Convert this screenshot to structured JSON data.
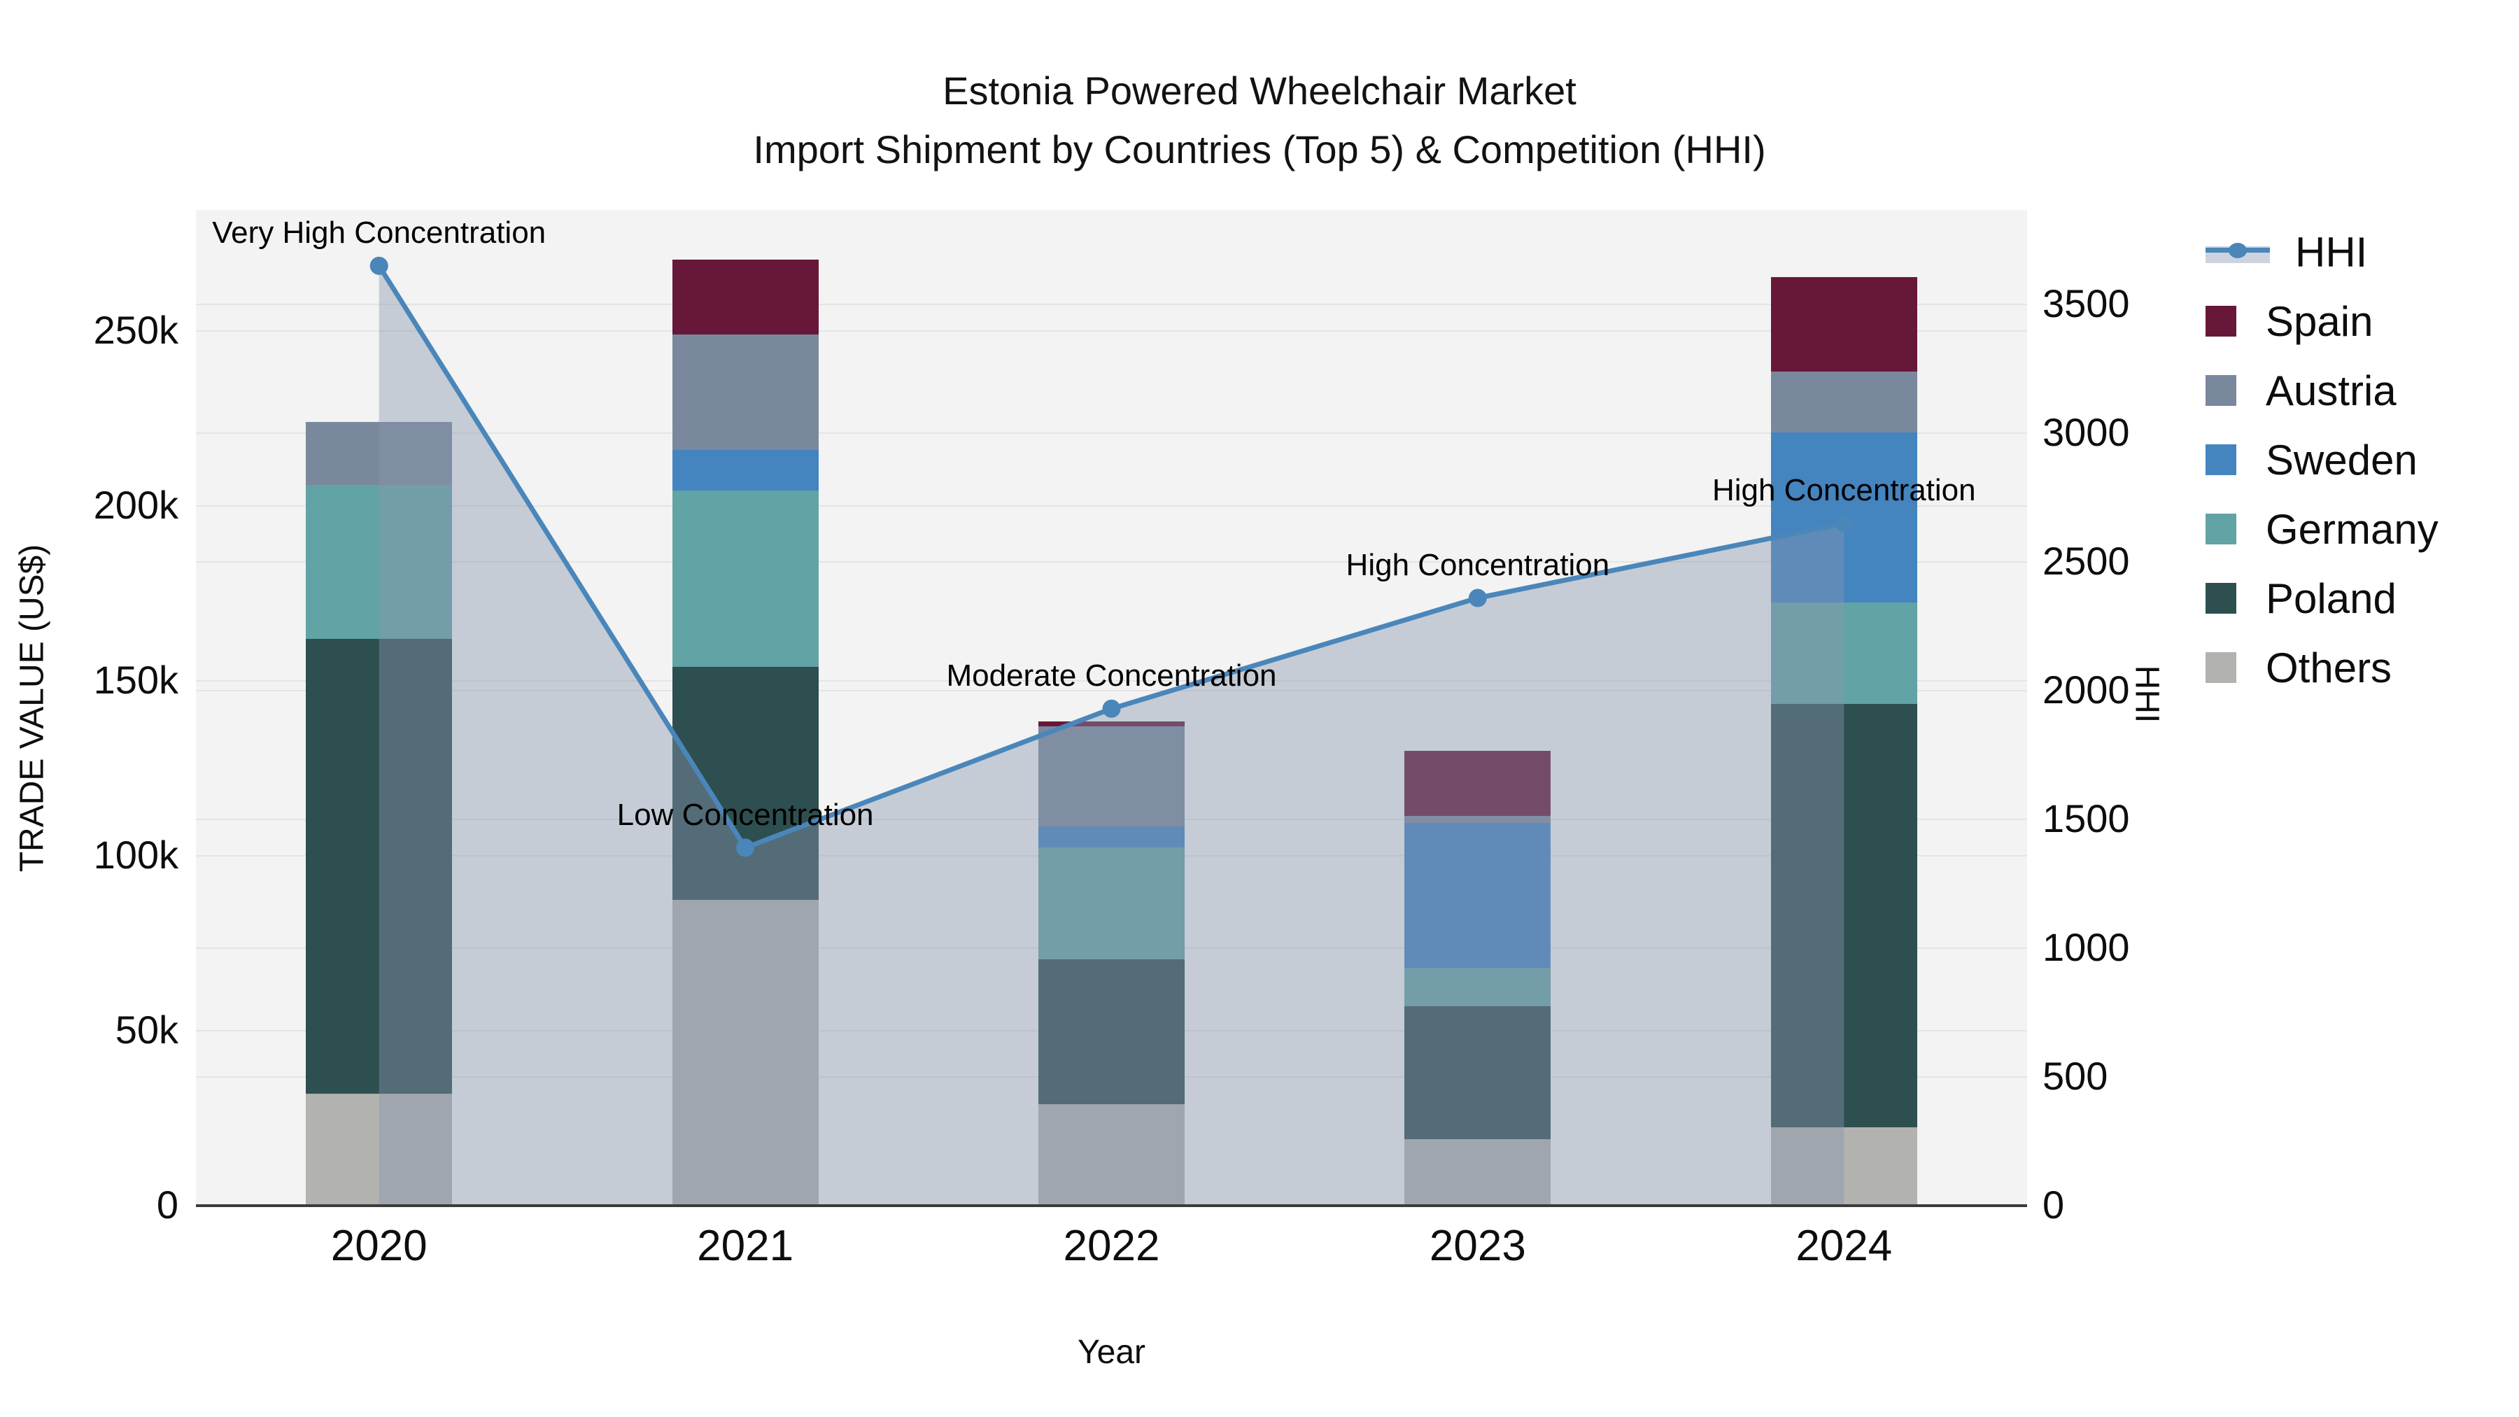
{
  "title": {
    "line1": "Estonia Powered Wheelchair Market",
    "line2": "Import Shipment by Countries (Top 5) & Competition (HHI)"
  },
  "axes": {
    "left": {
      "title": "TRADE VALUE (US$)",
      "range": [
        0,
        284600
      ],
      "ticks": [
        {
          "label": "0",
          "value": 0
        },
        {
          "label": "50k",
          "value": 50000
        },
        {
          "label": "100k",
          "value": 100000
        },
        {
          "label": "150k",
          "value": 150000
        },
        {
          "label": "200k",
          "value": 200000
        },
        {
          "label": "250k",
          "value": 250000
        }
      ]
    },
    "right": {
      "title": "HHI",
      "range": [
        0,
        3867
      ],
      "ticks": [
        {
          "label": "0",
          "value": 0
        },
        {
          "label": "500",
          "value": 500
        },
        {
          "label": "1000",
          "value": 1000
        },
        {
          "label": "1500",
          "value": 1500
        },
        {
          "label": "2000",
          "value": 2000
        },
        {
          "label": "2500",
          "value": 2500
        },
        {
          "label": "3000",
          "value": 3000
        },
        {
          "label": "3500",
          "value": 3500
        }
      ]
    },
    "x": {
      "title": "Year",
      "categories": [
        "2020",
        "2021",
        "2022",
        "2023",
        "2024"
      ]
    }
  },
  "colors": {
    "spain": "#671839",
    "austria": "#7a889d",
    "sweden": "#4484bf",
    "germany": "#62a3a5",
    "poland": "#2e4f50",
    "others": "#b2b2af",
    "hhi_line": "#4a86ba",
    "hhi_area": "rgba(135,150,175,0.42)",
    "plot_bg": "#f2f3f2",
    "grid": "#e3e4e3",
    "axis_line": "#3b3b3b"
  },
  "legend": [
    {
      "label": "HHI",
      "type": "line",
      "color_key": "hhi_line"
    },
    {
      "label": "Spain",
      "type": "box",
      "color_key": "spain"
    },
    {
      "label": "Austria",
      "type": "box",
      "color_key": "austria"
    },
    {
      "label": "Sweden",
      "type": "box",
      "color_key": "sweden"
    },
    {
      "label": "Germany",
      "type": "box",
      "color_key": "germany"
    },
    {
      "label": "Poland",
      "type": "box",
      "color_key": "poland"
    },
    {
      "label": "Others",
      "type": "box",
      "color_key": "others"
    }
  ],
  "chart_data": {
    "type": "bar",
    "subtype": "stacked-bars-with-line",
    "categories": [
      "2020",
      "2021",
      "2022",
      "2023",
      "2024"
    ],
    "stack_order_bottom_to_top": [
      "Others",
      "Poland",
      "Germany",
      "Sweden",
      "Austria",
      "Spain"
    ],
    "series": [
      {
        "name": "Others",
        "color_key": "others",
        "values": [
          32000,
          87500,
          29000,
          19000,
          22500
        ]
      },
      {
        "name": "Poland",
        "color_key": "poland",
        "values": [
          130000,
          66500,
          41500,
          38000,
          121000
        ]
      },
      {
        "name": "Germany",
        "color_key": "germany",
        "values": [
          44000,
          50500,
          32000,
          11000,
          29000
        ]
      },
      {
        "name": "Sweden",
        "color_key": "sweden",
        "values": [
          0,
          11500,
          6000,
          41500,
          48500
        ]
      },
      {
        "name": "Austria",
        "color_key": "austria",
        "values": [
          18000,
          33000,
          28500,
          2000,
          17500
        ]
      },
      {
        "name": "Spain",
        "color_key": "spain",
        "values": [
          0,
          21500,
          1500,
          18500,
          27000
        ]
      }
    ],
    "bar_totals": [
      224000,
      270500,
      138500,
      130000,
      265500
    ],
    "line_series": {
      "name": "HHI",
      "axis": "right",
      "values": [
        3650,
        1390,
        1930,
        2360,
        2650
      ]
    },
    "annotations": [
      {
        "text": "Very High Concentration",
        "category": "2020",
        "hhi": 3650
      },
      {
        "text": "Low Concentration",
        "category": "2021",
        "hhi": 1390
      },
      {
        "text": "Moderate Concentration",
        "category": "2022",
        "hhi": 1930
      },
      {
        "text": "High Concentration",
        "category": "2023",
        "hhi": 2360
      },
      {
        "text": "High Concentration",
        "category": "2024",
        "hhi": 2650
      }
    ],
    "title": "Estonia Powered Wheelchair Market — Import Shipment by Countries (Top 5) & Competition (HHI)",
    "xlabel": "Year",
    "ylabel_left": "TRADE VALUE (US$)",
    "ylabel_right": "HHI",
    "ylim_left": [
      0,
      284600
    ],
    "ylim_right": [
      0,
      3867
    ],
    "grid": true,
    "legend_position": "right"
  }
}
